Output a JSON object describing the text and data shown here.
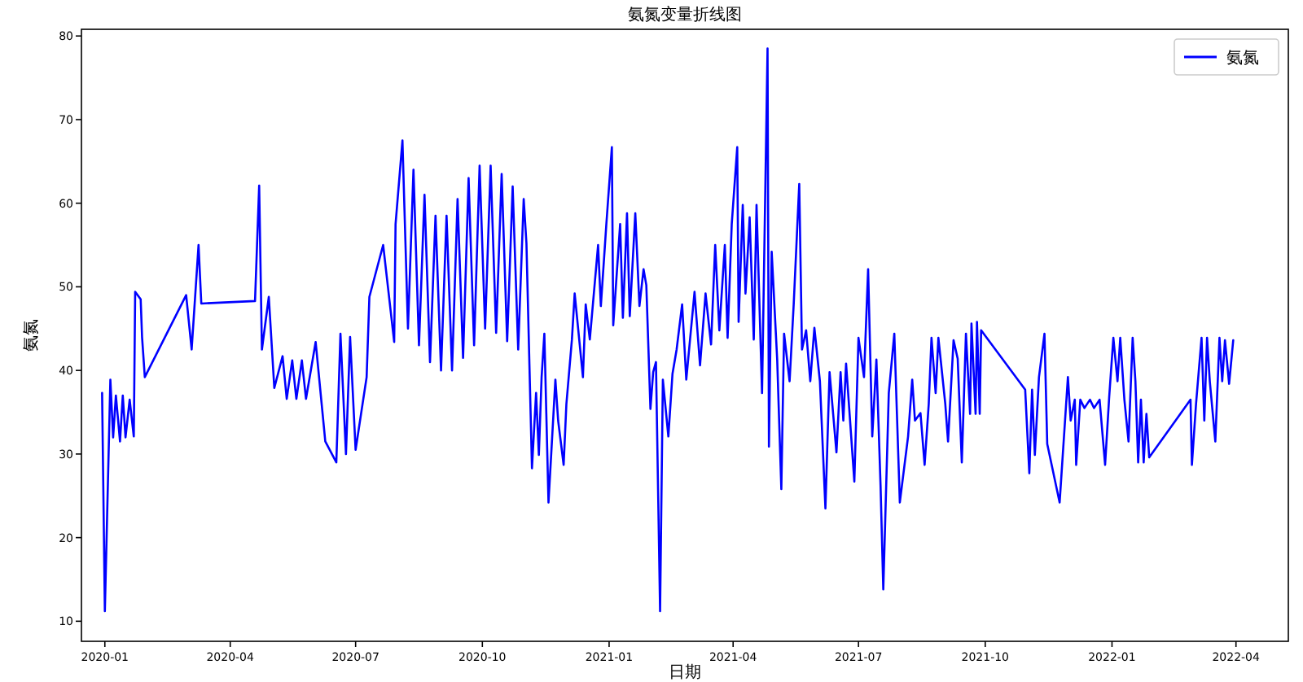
{
  "chart_data": {
    "type": "line",
    "title": "氨氮变量折线图",
    "xlabel": "日期",
    "ylabel": "氨氮",
    "legend": "top right",
    "xlim": [
      "2019-12-15",
      "2022-05-09"
    ],
    "ylim": [
      7.6,
      80.8
    ],
    "xticks": [
      {
        "value": "2020-01",
        "label": "2020-01"
      },
      {
        "value": "2020-04",
        "label": "2020-04"
      },
      {
        "value": "2020-07",
        "label": "2020-07"
      },
      {
        "value": "2020-10",
        "label": "2020-10"
      },
      {
        "value": "2021-01",
        "label": "2021-01"
      },
      {
        "value": "2021-04",
        "label": "2021-04"
      },
      {
        "value": "2021-07",
        "label": "2021-07"
      },
      {
        "value": "2021-10",
        "label": "2021-10"
      },
      {
        "value": "2022-01",
        "label": "2022-01"
      },
      {
        "value": "2022-04",
        "label": "2022-04"
      }
    ],
    "yticks": [
      10,
      20,
      30,
      40,
      50,
      60,
      70,
      80
    ],
    "x": [
      "2019-12-30",
      "2020-01-01",
      "2020-01-05",
      "2020-01-07",
      "2020-01-09",
      "2020-01-12",
      "2020-01-14",
      "2020-01-16",
      "2020-01-19",
      "2020-01-22",
      "2020-01-23",
      "2020-01-27",
      "2020-01-28",
      "2020-01-30",
      "2020-02-29",
      "2020-03-04",
      "2020-03-09",
      "2020-03-11",
      "2020-04-19",
      "2020-04-22",
      "2020-04-24",
      "2020-04-29",
      "2020-05-03",
      "2020-05-09",
      "2020-05-12",
      "2020-05-16",
      "2020-05-19",
      "2020-05-23",
      "2020-05-26",
      "2020-06-02",
      "2020-06-09",
      "2020-06-17",
      "2020-06-20",
      "2020-06-24",
      "2020-06-27",
      "2020-07-01",
      "2020-07-09",
      "2020-07-11",
      "2020-07-21",
      "2020-07-29",
      "2020-07-30",
      "2020-08-04",
      "2020-08-08",
      "2020-08-12",
      "2020-08-16",
      "2020-08-20",
      "2020-08-24",
      "2020-08-28",
      "2020-09-01",
      "2020-09-05",
      "2020-09-09",
      "2020-09-13",
      "2020-09-17",
      "2020-09-21",
      "2020-09-25",
      "2020-09-29",
      "2020-10-03",
      "2020-10-07",
      "2020-10-11",
      "2020-10-15",
      "2020-10-19",
      "2020-10-23",
      "2020-10-27",
      "2020-10-31",
      "2020-11-02",
      "2020-11-06",
      "2020-11-09",
      "2020-11-11",
      "2020-11-13",
      "2020-11-15",
      "2020-11-18",
      "2020-11-23",
      "2020-11-25",
      "2020-11-29",
      "2020-12-01",
      "2020-12-05",
      "2020-12-07",
      "2020-12-13",
      "2020-12-15",
      "2020-12-18",
      "2020-12-24",
      "2020-12-26",
      "2020-12-30",
      "2021-01-03",
      "2021-01-04",
      "2021-01-09",
      "2021-01-11",
      "2021-01-14",
      "2021-01-16",
      "2021-01-20",
      "2021-01-23",
      "2021-01-26",
      "2021-01-28",
      "2021-01-31",
      "2021-02-02",
      "2021-02-04",
      "2021-02-07",
      "2021-02-09",
      "2021-02-13",
      "2021-02-16",
      "2021-02-19",
      "2021-02-23",
      "2021-02-26",
      "2021-03-04",
      "2021-03-08",
      "2021-03-12",
      "2021-03-16",
      "2021-03-19",
      "2021-03-22",
      "2021-03-26",
      "2021-03-28",
      "2021-03-31",
      "2021-04-04",
      "2021-04-05",
      "2021-04-08",
      "2021-04-10",
      "2021-04-13",
      "2021-04-16",
      "2021-04-18",
      "2021-04-22",
      "2021-04-26",
      "2021-04-27",
      "2021-04-29",
      "2021-05-03",
      "2021-05-06",
      "2021-05-08",
      "2021-05-12",
      "2021-05-15",
      "2021-05-19",
      "2021-05-21",
      "2021-05-24",
      "2021-05-27",
      "2021-05-30",
      "2021-06-03",
      "2021-06-07",
      "2021-06-10",
      "2021-06-15",
      "2021-06-18",
      "2021-06-20",
      "2021-06-22",
      "2021-06-28",
      "2021-07-01",
      "2021-07-05",
      "2021-07-08",
      "2021-07-11",
      "2021-07-14",
      "2021-07-17",
      "2021-07-19",
      "2021-07-23",
      "2021-07-27",
      "2021-07-31",
      "2021-08-06",
      "2021-08-09",
      "2021-08-11",
      "2021-08-15",
      "2021-08-18",
      "2021-08-21",
      "2021-08-23",
      "2021-08-26",
      "2021-08-28",
      "2021-09-02",
      "2021-09-04",
      "2021-09-08",
      "2021-09-11",
      "2021-09-14",
      "2021-09-17",
      "2021-09-20",
      "2021-09-21",
      "2021-09-24",
      "2021-09-25",
      "2021-09-27",
      "2021-09-28",
      "2021-10-30",
      "2021-11-02",
      "2021-11-04",
      "2021-11-06",
      "2021-11-09",
      "2021-11-13",
      "2021-11-15",
      "2021-11-24",
      "2021-11-30",
      "2021-12-02",
      "2021-12-05",
      "2021-12-06",
      "2021-12-09",
      "2021-12-12",
      "2021-12-16",
      "2021-12-19",
      "2021-12-23",
      "2021-12-27",
      "2021-12-30",
      "2022-01-02",
      "2022-01-05",
      "2022-01-07",
      "2022-01-10",
      "2022-01-13",
      "2022-01-16",
      "2022-01-18",
      "2022-01-20",
      "2022-01-22",
      "2022-01-24",
      "2022-01-26",
      "2022-01-28",
      "2022-02-27",
      "2022-02-28",
      "2022-03-03",
      "2022-03-07",
      "2022-03-09",
      "2022-03-11",
      "2022-03-13",
      "2022-03-17",
      "2022-03-20",
      "2022-03-22",
      "2022-03-24",
      "2022-03-27",
      "2022-03-30"
    ],
    "series": [
      {
        "name": "氨氮",
        "color": "#0000ff",
        "values": [
          37.3,
          11.2,
          38.9,
          32,
          37,
          31.5,
          37,
          32,
          36.5,
          32.1,
          49.4,
          48.5,
          44,
          39.2,
          49,
          42.5,
          55,
          48,
          48.3,
          62.1,
          42.5,
          48.8,
          37.9,
          41.7,
          36.6,
          41.2,
          36.6,
          41.2,
          36.6,
          43.4,
          31.5,
          29,
          44.4,
          30,
          44,
          30.5,
          39.2,
          48.8,
          55,
          43.4,
          57.5,
          67.5,
          45,
          64,
          43,
          61,
          41,
          58.5,
          40,
          58.5,
          40,
          60.5,
          41.5,
          63,
          43,
          64.5,
          45,
          64.5,
          44.5,
          63.5,
          43.5,
          62,
          42.5,
          60.5,
          55.2,
          28.3,
          37.3,
          29.9,
          39.2,
          44.4,
          24.2,
          38.9,
          34,
          28.7,
          36,
          43.7,
          49.2,
          39.2,
          47.9,
          43.7,
          55,
          47.7,
          57.5,
          66.7,
          45.4,
          57.5,
          46.3,
          58.8,
          46.5,
          58.8,
          47.7,
          52.1,
          50.2,
          35.4,
          39.8,
          41,
          11.2,
          38.9,
          32.1,
          39.6,
          42.5,
          47.9,
          38.9,
          49.4,
          40.6,
          49.2,
          43.1,
          55,
          44.8,
          55,
          43.9,
          57.5,
          66.7,
          45.8,
          59.8,
          49.2,
          58.3,
          43.7,
          59.8,
          37.3,
          78.5,
          30.9,
          54.2,
          41.3,
          25.8,
          44.4,
          38.7,
          48,
          62.3,
          42.5,
          44.8,
          38.7,
          45.1,
          38.7,
          23.5,
          39.8,
          30.2,
          39.8,
          34,
          40.8,
          26.7,
          43.9,
          39.2,
          52.1,
          32.1,
          41.3,
          26.3,
          13.8,
          37.3,
          44.4,
          24.2,
          32.1,
          38.9,
          34,
          34.9,
          28.7,
          36,
          43.9,
          37.3,
          43.9,
          36,
          31.5,
          43.6,
          41.4,
          29,
          44.4,
          34.8,
          45.6,
          34.8,
          45.8,
          34.8,
          44.8,
          37.7,
          27.7,
          37.7,
          29.9,
          39.2,
          44.4,
          31.2,
          24.2,
          39.2,
          34,
          36.5,
          28.7,
          36.5,
          35.5,
          36.5,
          35.5,
          36.5,
          28.7,
          36.9,
          43.9,
          38.7,
          43.9,
          36.5,
          31.5,
          43.9,
          38.7,
          29,
          36.5,
          29,
          34.8,
          29.6,
          36.5,
          28.7,
          36,
          43.9,
          34,
          43.9,
          38.7,
          31.5,
          43.9,
          38.7,
          43.6,
          38.4,
          43.6
        ]
      }
    ]
  }
}
